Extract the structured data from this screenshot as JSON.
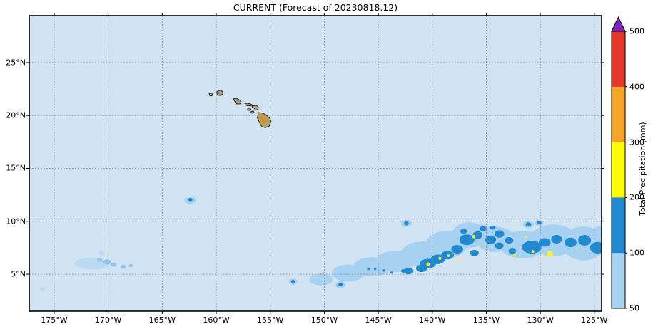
{
  "figure": {
    "title": "CURRENT (Forecast of 20230818.12)",
    "background": "#ffffff"
  },
  "colorbar": {
    "title": "Total Precipitation (mm)",
    "tick_labels": [
      "50",
      "100",
      "200",
      "300",
      "400",
      "500"
    ],
    "segment_colors": [
      "#a6d1f0",
      "#2089cf",
      "#fdfd00",
      "#f4a428",
      "#e3382a"
    ],
    "over_color": "#7e22bb",
    "outline_color": "#000000"
  },
  "chart_data": {
    "type": "heatmap",
    "title": "CURRENT (Forecast of 20230818.12)",
    "units": "mm",
    "legend_levels": [
      50,
      100,
      200,
      300,
      400,
      500
    ],
    "extent": {
      "lon_min": -177.31,
      "lon_max": -124.33,
      "lat_min": 1.5,
      "lat_max": 29.44
    },
    "x_ticks": [
      {
        "lon": -175,
        "label": "175°W"
      },
      {
        "lon": -170,
        "label": "170°W"
      },
      {
        "lon": -165,
        "label": "165°W"
      },
      {
        "lon": -160,
        "label": "160°W"
      },
      {
        "lon": -155,
        "label": "155°W"
      },
      {
        "lon": -150,
        "label": "150°W"
      },
      {
        "lon": -145,
        "label": "145°W"
      },
      {
        "lon": -140,
        "label": "140°W"
      },
      {
        "lon": -135,
        "label": "135°W"
      },
      {
        "lon": -130,
        "label": "130°W"
      },
      {
        "lon": -125,
        "label": "125°W"
      }
    ],
    "y_ticks": [
      {
        "lat": 25,
        "label": "25°N"
      },
      {
        "lat": 20,
        "label": "20°N"
      },
      {
        "lat": 15,
        "label": "15°N"
      },
      {
        "lat": 10,
        "label": "10°N"
      },
      {
        "lat": 5,
        "label": "5°N"
      }
    ],
    "colors": {
      "ocean": "#d2e4f4",
      "grid": "#7a8694",
      "frame": "#000000",
      "precip_50_100": "#a6d1f0",
      "precip_soft": "#85bce8",
      "precip_100_200": "#2089cf",
      "precip_200_300": "#f0f23e",
      "island_fill": "#aba27f",
      "island_peak": "#cf8c2e",
      "island_outline": "#23231a"
    },
    "precip_blobs_light_50mm": [
      [
        -150.3,
        4.5,
        1.1,
        0.55
      ],
      [
        -147.8,
        5.1,
        1.5,
        0.8
      ],
      [
        -145.6,
        5.7,
        1.7,
        0.9
      ],
      [
        -143.4,
        6.2,
        1.9,
        1.0
      ],
      [
        -140.9,
        6.9,
        2.0,
        1.2
      ],
      [
        -138.7,
        7.8,
        1.9,
        1.3
      ],
      [
        -136.6,
        8.7,
        1.6,
        1.2
      ],
      [
        -134.2,
        8.3,
        1.8,
        1.2
      ],
      [
        -131.6,
        7.8,
        2.2,
        1.3
      ],
      [
        -128.8,
        8.2,
        2.2,
        1.5
      ],
      [
        -126.0,
        7.9,
        2.0,
        1.6
      ],
      [
        -124.3,
        8.2,
        1.2,
        1.4
      ],
      [
        -162.4,
        12.0,
        0.55,
        0.35
      ],
      [
        -171.5,
        6.0,
        1.6,
        0.55,
        0.55
      ],
      [
        -176.1,
        3.6,
        0.25,
        0.18,
        0.5
      ],
      [
        -170.6,
        7.0,
        0.3,
        0.2,
        0.55
      ],
      [
        -152.9,
        4.3,
        0.4,
        0.3
      ],
      [
        -148.5,
        4.0,
        0.45,
        0.35
      ],
      [
        -142.4,
        9.8,
        0.5,
        0.35
      ],
      [
        -131.1,
        9.7,
        0.5,
        0.35
      ],
      [
        -130.1,
        9.85,
        0.4,
        0.3
      ],
      [
        -135.3,
        9.3,
        0.5,
        0.4
      ]
    ],
    "precip_blobs_soft": [
      [
        -170.1,
        6.15,
        0.35,
        0.25
      ],
      [
        -169.5,
        5.9,
        0.3,
        0.2
      ],
      [
        -168.6,
        5.7,
        0.25,
        0.2
      ],
      [
        -170.8,
        6.35,
        0.25,
        0.18
      ],
      [
        -167.9,
        5.8,
        0.2,
        0.15
      ]
    ],
    "precip_blobs_mid_100mm": [
      [
        -140.4,
        6.0,
        0.75,
        0.45
      ],
      [
        -139.5,
        6.4,
        0.65,
        0.45
      ],
      [
        -138.6,
        6.8,
        0.6,
        0.4
      ],
      [
        -141.0,
        5.55,
        0.5,
        0.35
      ],
      [
        -142.2,
        5.3,
        0.45,
        0.3
      ],
      [
        -137.7,
        7.35,
        0.55,
        0.4
      ],
      [
        -136.8,
        8.25,
        0.7,
        0.5
      ],
      [
        -135.8,
        8.7,
        0.45,
        0.35
      ],
      [
        -134.6,
        8.25,
        0.5,
        0.4
      ],
      [
        -133.8,
        8.8,
        0.45,
        0.35
      ],
      [
        -132.9,
        8.2,
        0.4,
        0.3
      ],
      [
        -130.8,
        7.55,
        0.9,
        0.6
      ],
      [
        -129.6,
        8.0,
        0.55,
        0.4
      ],
      [
        -128.5,
        8.3,
        0.5,
        0.4
      ],
      [
        -127.2,
        8.0,
        0.55,
        0.45
      ],
      [
        -125.9,
        8.2,
        0.6,
        0.5
      ],
      [
        -124.7,
        7.5,
        0.7,
        0.55
      ],
      [
        -142.4,
        9.8,
        0.22,
        0.18
      ],
      [
        -131.1,
        9.7,
        0.25,
        0.2
      ],
      [
        -130.1,
        9.85,
        0.2,
        0.16
      ],
      [
        -135.3,
        9.3,
        0.3,
        0.25
      ],
      [
        -152.9,
        4.3,
        0.18,
        0.15
      ],
      [
        -148.5,
        4.0,
        0.2,
        0.16
      ],
      [
        -145.9,
        5.5,
        0.15,
        0.12
      ],
      [
        -145.3,
        5.5,
        0.12,
        0.1
      ],
      [
        -144.5,
        5.35,
        0.15,
        0.12
      ],
      [
        -143.8,
        5.15,
        0.12,
        0.1
      ],
      [
        -142.7,
        5.3,
        0.22,
        0.16
      ],
      [
        -162.4,
        12.05,
        0.22,
        0.15
      ],
      [
        -137.1,
        9.05,
        0.3,
        0.25
      ],
      [
        -132.6,
        7.2,
        0.35,
        0.28
      ],
      [
        -133.8,
        7.7,
        0.4,
        0.3
      ],
      [
        -136.1,
        7.0,
        0.4,
        0.3
      ],
      [
        -134.4,
        9.4,
        0.25,
        0.2
      ]
    ],
    "precip_spots_heavy_200mm": [
      [
        -140.4,
        5.95,
        0.16
      ],
      [
        -139.3,
        6.5,
        0.14
      ],
      [
        -138.5,
        6.75,
        0.12
      ],
      [
        -136.15,
        8.55,
        0.15
      ],
      [
        -132.4,
        6.8,
        0.14
      ],
      [
        -130.7,
        7.15,
        0.13
      ],
      [
        -129.1,
        6.9,
        0.3
      ],
      [
        -131.3,
        8.55,
        0.1
      ],
      [
        -137.5,
        6.35,
        0.12
      ]
    ],
    "islands": [
      {
        "name": "Niihau",
        "points": [
          [
            -160.65,
            22.08
          ],
          [
            -160.45,
            22.12
          ],
          [
            -160.3,
            21.95
          ],
          [
            -160.5,
            21.82
          ],
          [
            -160.62,
            21.9
          ]
        ]
      },
      {
        "name": "Kauai",
        "points": [
          [
            -159.95,
            22.25
          ],
          [
            -159.7,
            22.38
          ],
          [
            -159.45,
            22.3
          ],
          [
            -159.38,
            22.05
          ],
          [
            -159.6,
            21.88
          ],
          [
            -159.9,
            21.95
          ]
        ]
      },
      {
        "name": "Oahu",
        "points": [
          [
            -158.4,
            21.58
          ],
          [
            -158.15,
            21.64
          ],
          [
            -157.9,
            21.5
          ],
          [
            -157.7,
            21.3
          ],
          [
            -157.78,
            21.1
          ],
          [
            -158.1,
            21.1
          ],
          [
            -158.3,
            21.35
          ]
        ]
      },
      {
        "name": "Molokai",
        "points": [
          [
            -157.35,
            21.15
          ],
          [
            -157.05,
            21.16
          ],
          [
            -156.72,
            21.05
          ],
          [
            -156.78,
            20.9
          ],
          [
            -157.1,
            20.92
          ],
          [
            -157.33,
            21.0
          ]
        ]
      },
      {
        "name": "Lanai",
        "points": [
          [
            -157.08,
            20.68
          ],
          [
            -156.85,
            20.69
          ],
          [
            -156.78,
            20.53
          ],
          [
            -157.0,
            20.48
          ],
          [
            -157.1,
            20.58
          ]
        ]
      },
      {
        "name": "Maui",
        "points": [
          [
            -156.68,
            20.95
          ],
          [
            -156.45,
            20.92
          ],
          [
            -156.3,
            20.96
          ],
          [
            -156.12,
            20.82
          ],
          [
            -156.12,
            20.6
          ],
          [
            -156.35,
            20.5
          ],
          [
            -156.5,
            20.7
          ],
          [
            -156.68,
            20.78
          ]
        ]
      },
      {
        "name": "Kahoolawe",
        "points": [
          [
            -156.76,
            20.4
          ],
          [
            -156.55,
            20.42
          ],
          [
            -156.5,
            20.27
          ],
          [
            -156.7,
            20.22
          ],
          [
            -156.78,
            20.32
          ]
        ]
      },
      {
        "name": "Hawaii",
        "gradient": true,
        "points": [
          [
            -156.1,
            20.28
          ],
          [
            -155.8,
            20.25
          ],
          [
            -155.45,
            20.1
          ],
          [
            -155.05,
            19.75
          ],
          [
            -154.93,
            19.45
          ],
          [
            -155.1,
            19.0
          ],
          [
            -155.45,
            18.85
          ],
          [
            -155.8,
            18.95
          ],
          [
            -156.0,
            19.35
          ],
          [
            -156.2,
            19.8
          ]
        ]
      }
    ]
  }
}
